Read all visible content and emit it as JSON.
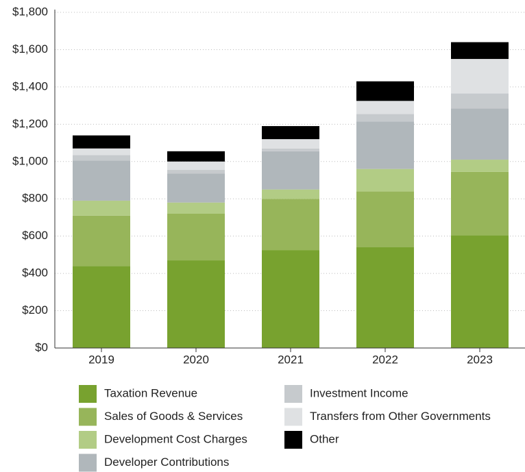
{
  "chart_data": {
    "type": "bar",
    "stacked": true,
    "categories": [
      "2019",
      "2020",
      "2021",
      "2022",
      "2023"
    ],
    "series": [
      {
        "name": "Taxation Revenue",
        "color": "#78a22f",
        "values": [
          440,
          470,
          525,
          540,
          605
        ]
      },
      {
        "name": "Sales of Goods & Services",
        "color": "#97b55a",
        "values": [
          270,
          250,
          275,
          300,
          340
        ]
      },
      {
        "name": "Development Cost Charges",
        "color": "#b2cc85",
        "values": [
          80,
          60,
          50,
          120,
          65
        ]
      },
      {
        "name": "Developer Contributions",
        "color": "#b0b7bb",
        "values": [
          215,
          155,
          205,
          255,
          275
        ]
      },
      {
        "name": "Investment Income",
        "color": "#c6cacd",
        "values": [
          30,
          20,
          15,
          40,
          80
        ]
      },
      {
        "name": "Transfers from Other Governments",
        "color": "#dfe1e3",
        "values": [
          35,
          45,
          50,
          70,
          185
        ]
      },
      {
        "name": "Other",
        "color": "#000000",
        "values": [
          70,
          55,
          70,
          105,
          90
        ]
      }
    ],
    "ylim": [
      0,
      1800
    ],
    "yticks": [
      {
        "value": 0,
        "label": "$0"
      },
      {
        "value": 200,
        "label": "$200"
      },
      {
        "value": 400,
        "label": "$400"
      },
      {
        "value": 600,
        "label": "$600"
      },
      {
        "value": 800,
        "label": "$800"
      },
      {
        "value": 1000,
        "label": "$1,000"
      },
      {
        "value": 1200,
        "label": "$1,200"
      },
      {
        "value": 1400,
        "label": "$1,400"
      },
      {
        "value": 1600,
        "label": "$1,600"
      },
      {
        "value": 1800,
        "label": "$1,800"
      }
    ],
    "grid": true
  }
}
